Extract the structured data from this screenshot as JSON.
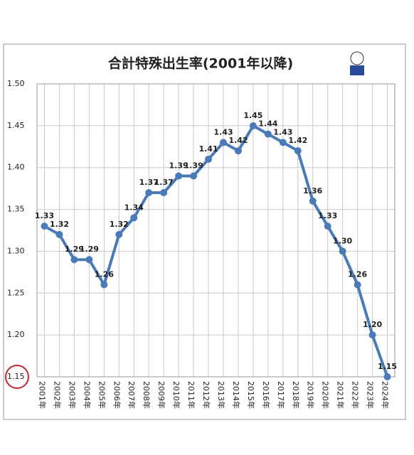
{
  "chart_data": {
    "type": "line",
    "title": "合計特殊出生率(2001年以降)",
    "categories": [
      "2001年",
      "2002年",
      "2003年",
      "2004年",
      "2005年",
      "2006年",
      "2007年",
      "2008年",
      "2009年",
      "2010年",
      "2011年",
      "2012年",
      "2013年",
      "2014年",
      "2015年",
      "2016年",
      "2017年",
      "2018年",
      "2019年",
      "2020年",
      "2021年",
      "2022年",
      "2023年",
      "2024年"
    ],
    "series": [
      {
        "color": "#4a7ab8",
        "values": [
          1.33,
          1.32,
          1.29,
          1.29,
          1.26,
          1.32,
          1.34,
          1.37,
          1.37,
          1.39,
          1.39,
          1.41,
          1.43,
          1.42,
          1.45,
          1.44,
          1.43,
          1.42,
          1.36,
          1.33,
          1.3,
          1.26,
          1.2,
          1.15
        ],
        "value_labels": [
          "1.33",
          "1.32",
          "1.29",
          "1.29",
          "1.26",
          "1.32",
          "1.34",
          "1.37",
          "1.37",
          "1.39",
          "1.39",
          "1.41",
          "1.43",
          "1.42",
          "1.45",
          "1.44",
          "1.43",
          "1.42",
          "1.36",
          "1.33",
          "1.30",
          "1.26",
          "1.20",
          "1.15"
        ]
      }
    ],
    "ylim": [
      1.15,
      1.5
    ],
    "yticks": [
      1.15,
      {
        "value": 1.2,
        "label": "1.20"
      },
      1.25,
      {
        "value": 1.3,
        "label": "1.30"
      },
      1.35,
      {
        "value": 1.4,
        "label": "1.40"
      },
      1.45,
      {
        "value": 1.5,
        "label": "1.50"
      }
    ],
    "grid": true
  }
}
